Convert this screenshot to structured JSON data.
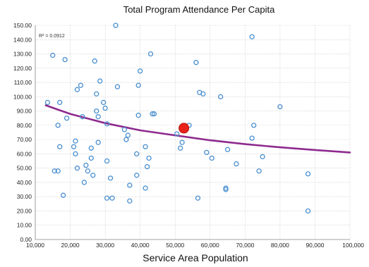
{
  "chart_data": {
    "type": "scatter",
    "title": "Total  Program Attendance Per Capita",
    "xlabel": "Service Area Population",
    "ylabel": "",
    "xlim": [
      10000,
      100000
    ],
    "ylim": [
      0,
      150
    ],
    "x_ticks": [
      10000,
      20000,
      30000,
      40000,
      50000,
      60000,
      70000,
      80000,
      90000,
      100000
    ],
    "x_tick_labels": [
      "10,000",
      "20,000",
      "30,000",
      "40,000",
      "50,000",
      "60,000",
      "70,000",
      "80,000",
      "90,000",
      "100,000"
    ],
    "y_ticks": [
      0,
      10,
      20,
      30,
      40,
      50,
      60,
      70,
      80,
      90,
      100,
      110,
      120,
      130,
      140,
      150
    ],
    "y_tick_labels": [
      "0.00",
      "10.00",
      "20.00",
      "30.00",
      "40.00",
      "50.00",
      "60.00",
      "70.00",
      "80.00",
      "90.00",
      "100.00",
      "110.00",
      "120.00",
      "130.00",
      "140.00",
      "150.00"
    ],
    "grid": true,
    "annotation": "R² = 0.0912",
    "colors": {
      "points": "#4a8fcf",
      "trendline": "#8e2a8e",
      "highlight": "#e8231a"
    },
    "series": [
      {
        "points": [
          [
            13500,
            96
          ],
          [
            15000,
            129
          ],
          [
            15500,
            48
          ],
          [
            16500,
            48
          ],
          [
            16500,
            80
          ],
          [
            17000,
            96
          ],
          [
            17000,
            65
          ],
          [
            18000,
            31
          ],
          [
            18500,
            126
          ],
          [
            19000,
            85
          ],
          [
            21000,
            65
          ],
          [
            21500,
            69
          ],
          [
            21500,
            60
          ],
          [
            22000,
            105
          ],
          [
            22000,
            50
          ],
          [
            23000,
            108
          ],
          [
            23500,
            86
          ],
          [
            24000,
            40
          ],
          [
            24500,
            52
          ],
          [
            25000,
            48
          ],
          [
            26000,
            57
          ],
          [
            26000,
            64
          ],
          [
            26500,
            45
          ],
          [
            27000,
            125
          ],
          [
            27500,
            102
          ],
          [
            27500,
            90
          ],
          [
            28000,
            86
          ],
          [
            28000,
            68
          ],
          [
            28500,
            111
          ],
          [
            29500,
            96
          ],
          [
            30000,
            92
          ],
          [
            30500,
            81
          ],
          [
            30500,
            55
          ],
          [
            30500,
            29
          ],
          [
            31500,
            43
          ],
          [
            32000,
            29
          ],
          [
            33000,
            150
          ],
          [
            33500,
            107
          ],
          [
            35500,
            77
          ],
          [
            36000,
            70
          ],
          [
            36500,
            73
          ],
          [
            37000,
            27
          ],
          [
            37000,
            38
          ],
          [
            39000,
            60
          ],
          [
            39000,
            45
          ],
          [
            39500,
            108
          ],
          [
            39500,
            87
          ],
          [
            40000,
            118
          ],
          [
            41500,
            65
          ],
          [
            41500,
            36
          ],
          [
            42000,
            51
          ],
          [
            42500,
            57
          ],
          [
            43000,
            130
          ],
          [
            43500,
            88
          ],
          [
            44000,
            88
          ],
          [
            50500,
            74
          ],
          [
            51500,
            64
          ],
          [
            52000,
            68
          ],
          [
            54000,
            80
          ],
          [
            56000,
            124
          ],
          [
            56500,
            29
          ],
          [
            57000,
            103
          ],
          [
            58000,
            102
          ],
          [
            59000,
            61
          ],
          [
            60500,
            57
          ],
          [
            63000,
            100
          ],
          [
            64500,
            36
          ],
          [
            64500,
            35
          ],
          [
            65000,
            63
          ],
          [
            67500,
            53
          ],
          [
            72000,
            142
          ],
          [
            72000,
            71
          ],
          [
            72500,
            80
          ],
          [
            74000,
            48
          ],
          [
            75000,
            58
          ],
          [
            80000,
            93
          ],
          [
            88000,
            46
          ],
          [
            88000,
            20
          ]
        ]
      }
    ],
    "highlight_point": [
      52500,
      78
    ],
    "trendline_points": [
      [
        13000,
        94
      ],
      [
        20000,
        88
      ],
      [
        30000,
        81.5
      ],
      [
        40000,
        76.5
      ],
      [
        50000,
        73
      ],
      [
        60000,
        69.5
      ],
      [
        70000,
        66.8
      ],
      [
        80000,
        64.6
      ],
      [
        90000,
        62.7
      ],
      [
        100000,
        61
      ]
    ]
  }
}
